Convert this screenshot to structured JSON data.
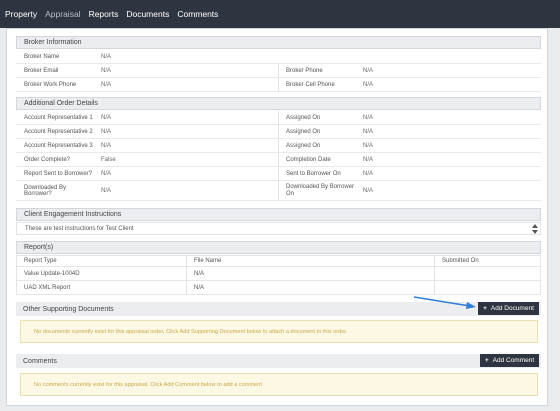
{
  "nav": {
    "items": [
      "Property",
      "Appraisal",
      "Reports",
      "Documents",
      "Comments"
    ],
    "active_index": 1
  },
  "broker": {
    "title": "Broker Information",
    "name_label": "Broker Name",
    "name_value": "N/A",
    "email_label": "Broker Email",
    "email_value": "N/A",
    "phone_label": "Broker Phone",
    "phone_value": "N/A",
    "work_phone_label": "Broker Work Phone",
    "work_phone_value": "N/A",
    "cell_phone_label": "Broker Cell Phone",
    "cell_phone_value": "N/A"
  },
  "order_details": {
    "title": "Additional Order Details",
    "rows": [
      {
        "left_label": "Account Representative 1",
        "left_value": "N/A",
        "right_label": "Assigned On",
        "right_value": "N/A"
      },
      {
        "left_label": "Account Representative 2",
        "left_value": "N/A",
        "right_label": "Assigned On",
        "right_value": "N/A"
      },
      {
        "left_label": "Account Representative 3",
        "left_value": "N/A",
        "right_label": "Assigned On",
        "right_value": "N/A"
      },
      {
        "left_label": "Order Complete?",
        "left_value": "False",
        "right_label": "Completion Date",
        "right_value": "N/A"
      },
      {
        "left_label": "Report Sent to Borrower?",
        "left_value": "N/A",
        "right_label": "Sent to Borrower On",
        "right_value": "N/A"
      },
      {
        "left_label": "Downloaded By Borrower?",
        "left_value": "N/A",
        "right_label": "Downloaded By Borrower On",
        "right_value": "N/A"
      }
    ]
  },
  "client_instructions": {
    "title": "Client Engagement Instructions",
    "text": "These are test instructions for Test Client"
  },
  "reports": {
    "title": "Report(s)",
    "headers": [
      "Report Type",
      "File Name",
      "Submitted On"
    ],
    "rows": [
      [
        "Value Update-1004D",
        "N/A",
        ""
      ],
      [
        "UAD XML Report",
        "N/A",
        ""
      ]
    ]
  },
  "supporting_docs": {
    "title": "Other Supporting Documents",
    "button_label": "Add Document",
    "empty_message": "No documents currently exist for this appraisal order. Click Add Supporting Document below to attach a document to this order."
  },
  "comments": {
    "title": "Comments",
    "button_label": "Add Comment",
    "empty_message": "No comments currently exist for this appraisal. Click Add Comment below to add a comment"
  },
  "colors": {
    "nav_bg": "#2f3540",
    "button_bg": "#2f3540",
    "alert_bg": "#fcf8e3",
    "alert_text": "#c9a84a",
    "annotation_arrow": "#2f7fd6"
  }
}
